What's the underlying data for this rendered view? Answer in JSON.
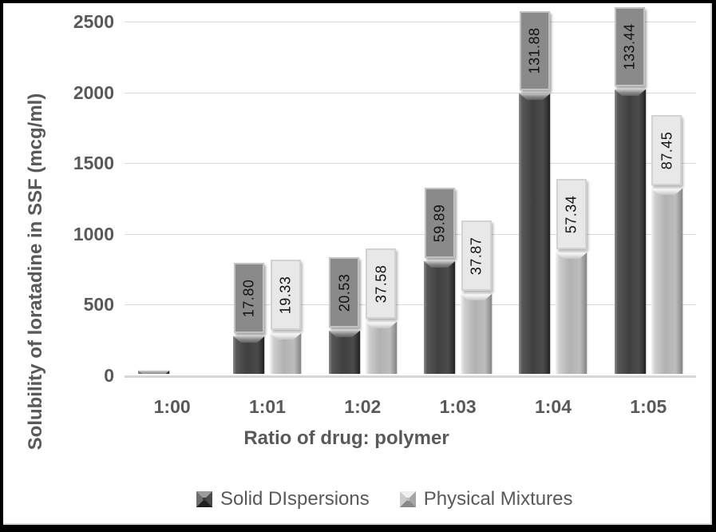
{
  "chart_data": {
    "type": "bar",
    "title": "",
    "xlabel": "Ratio of drug: polymer",
    "ylabel": "Solubility of loratadine in SSF (mcg/ml)",
    "categories": [
      "1:00",
      "1:01",
      "1:02",
      "1:03",
      "1:04",
      "1:05"
    ],
    "y_ticks": [
      0,
      500,
      1000,
      1500,
      2000,
      2500
    ],
    "ylim": [
      0,
      2500
    ],
    "grid": true,
    "legend_position": "bottom",
    "series": [
      {
        "name": "Solid DIspersions",
        "values": [
          20,
          265,
          303,
          798,
          1983,
          2011
        ],
        "data_labels": [
          "",
          "17.80",
          "20.53",
          "59.89",
          "131.88",
          "133.44"
        ],
        "color": "#404040",
        "label_box_fill": "#8a8a8a",
        "label_box_border": "#c2c2c2"
      },
      {
        "name": "Physical Mixtures",
        "values": [
          0,
          287,
          365,
          567,
          860,
          1309
        ],
        "data_labels": [
          "",
          "19.33",
          "37.58",
          "37.87",
          "57.34",
          "87.45"
        ],
        "color": "#b2b2b2",
        "label_box_fill": "#e8e8e8",
        "label_box_border": "#d2d2d2"
      }
    ],
    "colors": {
      "text": "#595959",
      "gridline": "#d9d9d9",
      "background": "#ffffff",
      "frame": "#000000"
    }
  }
}
